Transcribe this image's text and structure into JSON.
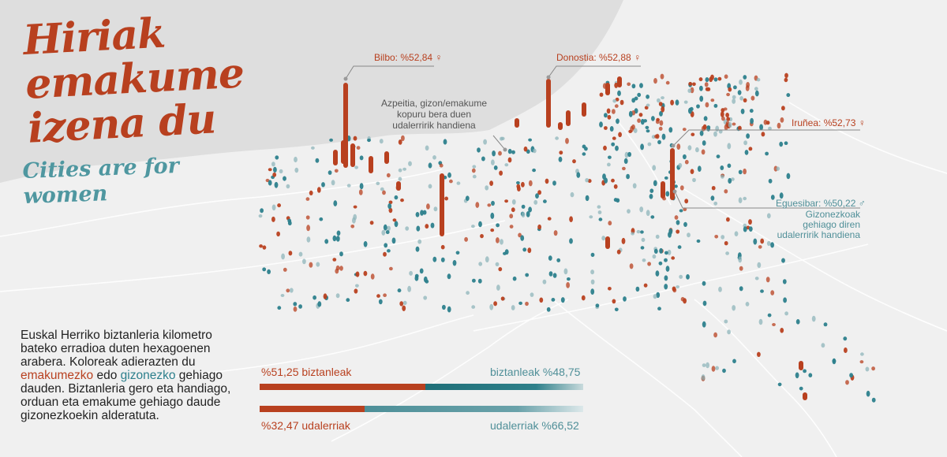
{
  "title": "Hiriak emakume izena du",
  "subtitle": "Cities are for women",
  "description": {
    "part1": "Euskal Herriko biztanleria kilometro bateko erradioa duten hexagoenen arabera. Koloreak adierazten du ",
    "women_word": "emakumezko",
    "part2": " edo ",
    "men_word": "gizonezko",
    "part3": " gehiago dauden. Biztanleria gero eta handiago, orduan eta emakume gehiago daude gizonezkoekin alderatuta."
  },
  "annotations": {
    "bilbo": "Bilbo: %52,84 ♀",
    "donostia": "Donostia: %52,88 ♀",
    "iruñea": "Iruñea: %52,73 ♀",
    "egues": "Eguesibar: %50,22 ♂",
    "egues_note": [
      "Gizonezkoak",
      "gehiago diren",
      "udalerririk handiena"
    ],
    "azpeitia_note": [
      "Azpeitia, gizon/emakume",
      "kopuru bera duen",
      "udalerririk handiena"
    ]
  },
  "bars": {
    "population": {
      "women_label": "%51,25 biztanleak",
      "men_label": "biztanleak %48,75",
      "women_pct": 51.25,
      "men_pct": 48.75
    },
    "municipalities": {
      "women_label": "%32,47 udalerriak",
      "men_label": "udalerriak %66,52",
      "women_pct": 32.47,
      "men_pct": 66.52
    }
  },
  "colors": {
    "women": "#b8401f",
    "men": "#2c7f8c",
    "sea": "#dedede",
    "land": "#f0f0f0"
  }
}
